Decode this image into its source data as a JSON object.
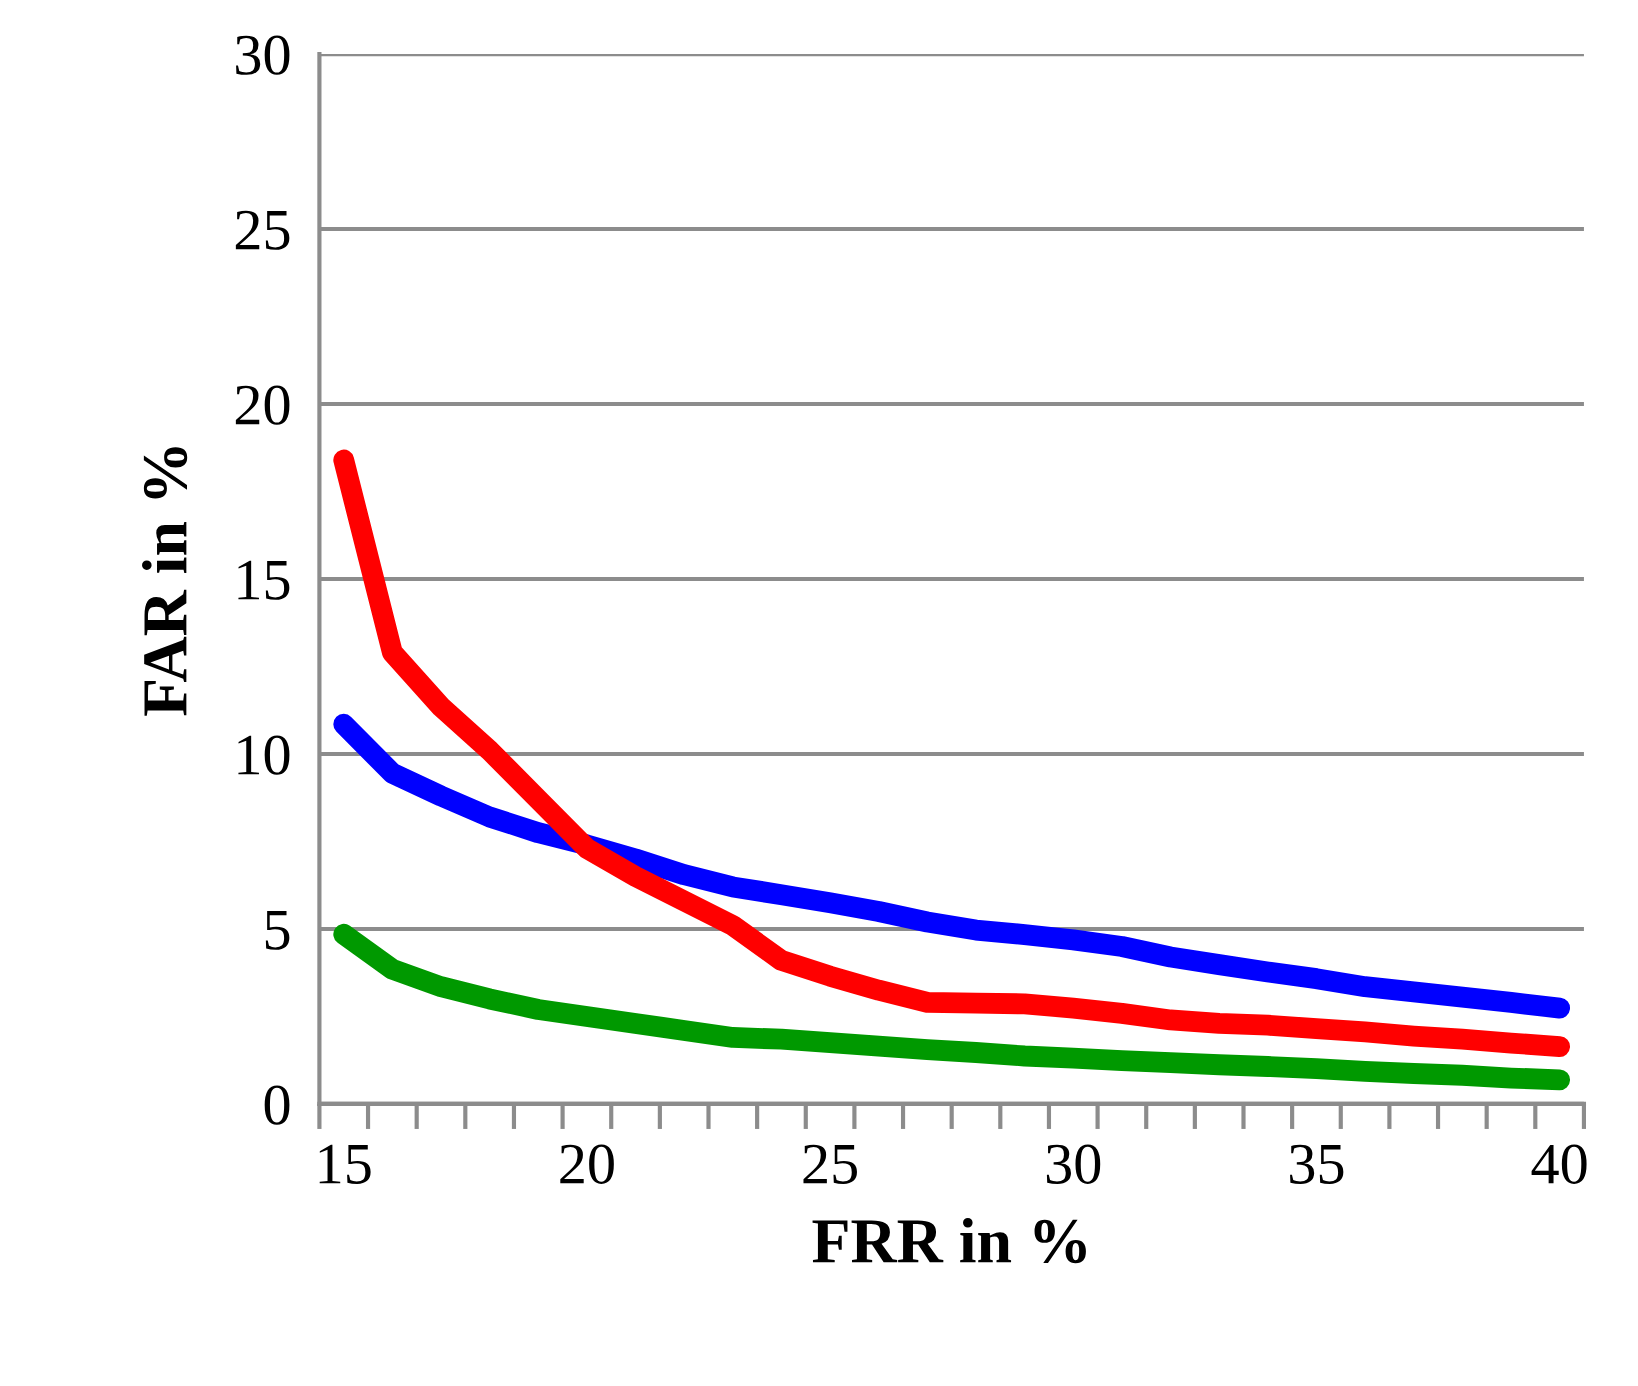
{
  "chart_data": {
    "type": "line",
    "xlabel": "FRR in %",
    "ylabel": "FAR in %",
    "categories": [
      "15",
      null,
      null,
      null,
      null,
      "20",
      null,
      null,
      null,
      null,
      "25",
      null,
      null,
      null,
      null,
      "30",
      null,
      null,
      null,
      null,
      "35",
      null,
      null,
      null,
      null,
      "40"
    ],
    "series": [
      {
        "color": "#0000ff",
        "values": [
          10.85,
          9.45,
          8.8,
          8.2,
          7.75,
          7.4,
          7.0,
          6.55,
          6.2,
          5.98,
          5.75,
          5.5,
          5.2,
          4.97,
          4.84,
          4.69,
          4.5,
          4.2,
          3.98,
          3.77,
          3.58,
          3.35,
          3.2,
          3.05,
          2.9,
          2.74
        ]
      },
      {
        "color": "#ff0000",
        "values": [
          18.4,
          12.9,
          11.35,
          10.1,
          8.7,
          7.3,
          6.5,
          5.8,
          5.1,
          4.1,
          3.65,
          3.25,
          2.9,
          2.88,
          2.86,
          2.74,
          2.59,
          2.4,
          2.3,
          2.25,
          2.15,
          2.06,
          1.94,
          1.85,
          1.74,
          1.64
        ]
      },
      {
        "color": "#009900",
        "values": [
          4.85,
          3.85,
          3.35,
          3.0,
          2.7,
          2.5,
          2.3,
          2.1,
          1.9,
          1.85,
          1.75,
          1.65,
          1.55,
          1.47,
          1.37,
          1.31,
          1.24,
          1.18,
          1.12,
          1.07,
          1.01,
          0.93,
          0.87,
          0.82,
          0.74,
          0.69
        ]
      }
    ],
    "ylim": [
      0,
      30
    ],
    "yticks": [
      0,
      5,
      10,
      15,
      20,
      25,
      30
    ],
    "grid": "y",
    "marker": "none",
    "line_style": "solid"
  }
}
